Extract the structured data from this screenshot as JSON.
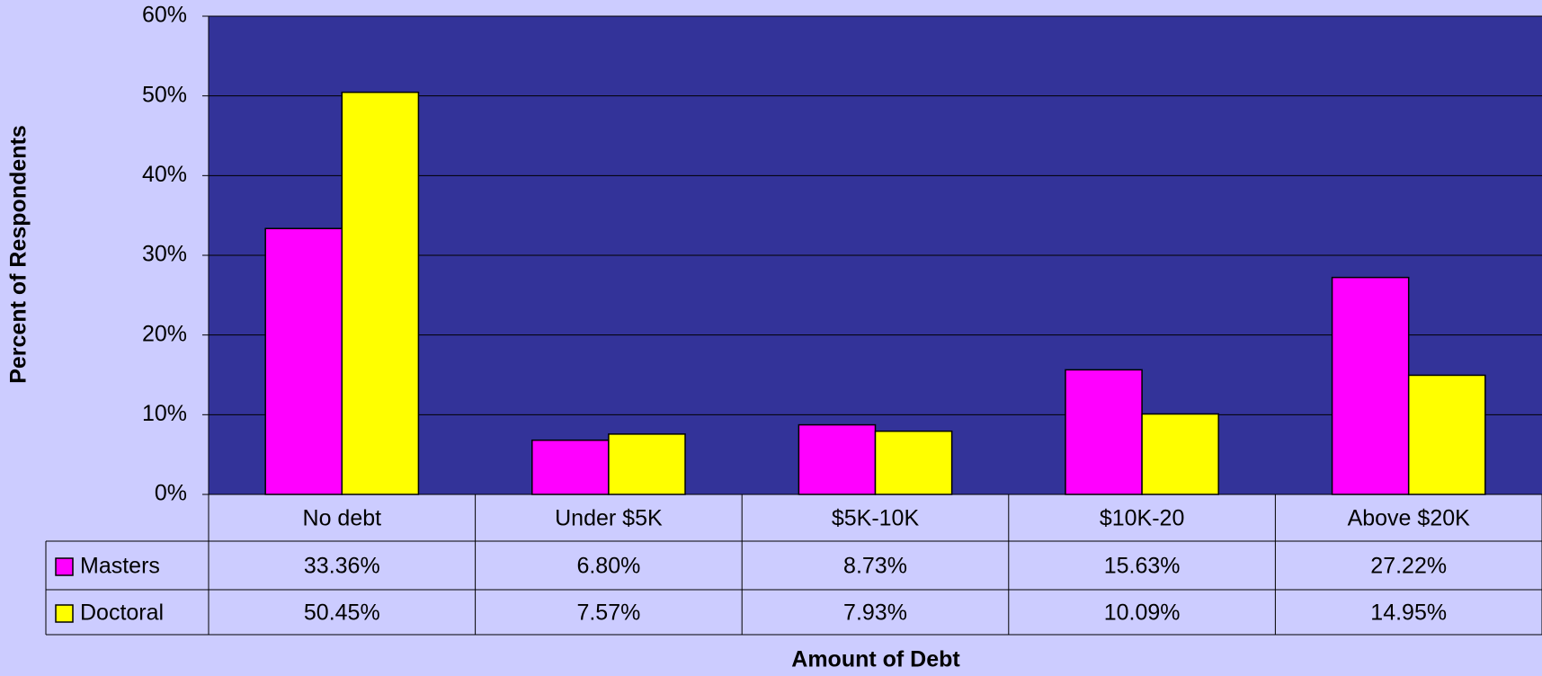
{
  "chart_data": {
    "type": "bar",
    "y_label": "Percent of Respondents",
    "x_label": "Amount of Debt",
    "categories": [
      "No debt",
      "Under $5K",
      "$5K-10K",
      "$10K-20",
      "Above $20K"
    ],
    "series": [
      {
        "name": "Masters",
        "color": "#ff00ff",
        "values": [
          33.36,
          6.8,
          8.73,
          15.63,
          27.22
        ],
        "value_labels": [
          "33.36%",
          "6.80%",
          "8.73%",
          "15.63%",
          "27.22%"
        ]
      },
      {
        "name": "Doctoral",
        "color": "#ffff00",
        "values": [
          50.45,
          7.57,
          7.93,
          10.09,
          14.95
        ],
        "value_labels": [
          "50.45%",
          "7.57%",
          "7.93%",
          "10.09%",
          "14.95%"
        ]
      }
    ],
    "ylim": [
      0,
      60
    ],
    "yticks": [
      {
        "value": 0,
        "label": "0%"
      },
      {
        "value": 10,
        "label": "10%"
      },
      {
        "value": 20,
        "label": "20%"
      },
      {
        "value": 30,
        "label": "30%"
      },
      {
        "value": 40,
        "label": "40%"
      },
      {
        "value": 50,
        "label": "50%"
      },
      {
        "value": 60,
        "label": "60%"
      }
    ],
    "grid": true,
    "plot_color": "#333399"
  }
}
